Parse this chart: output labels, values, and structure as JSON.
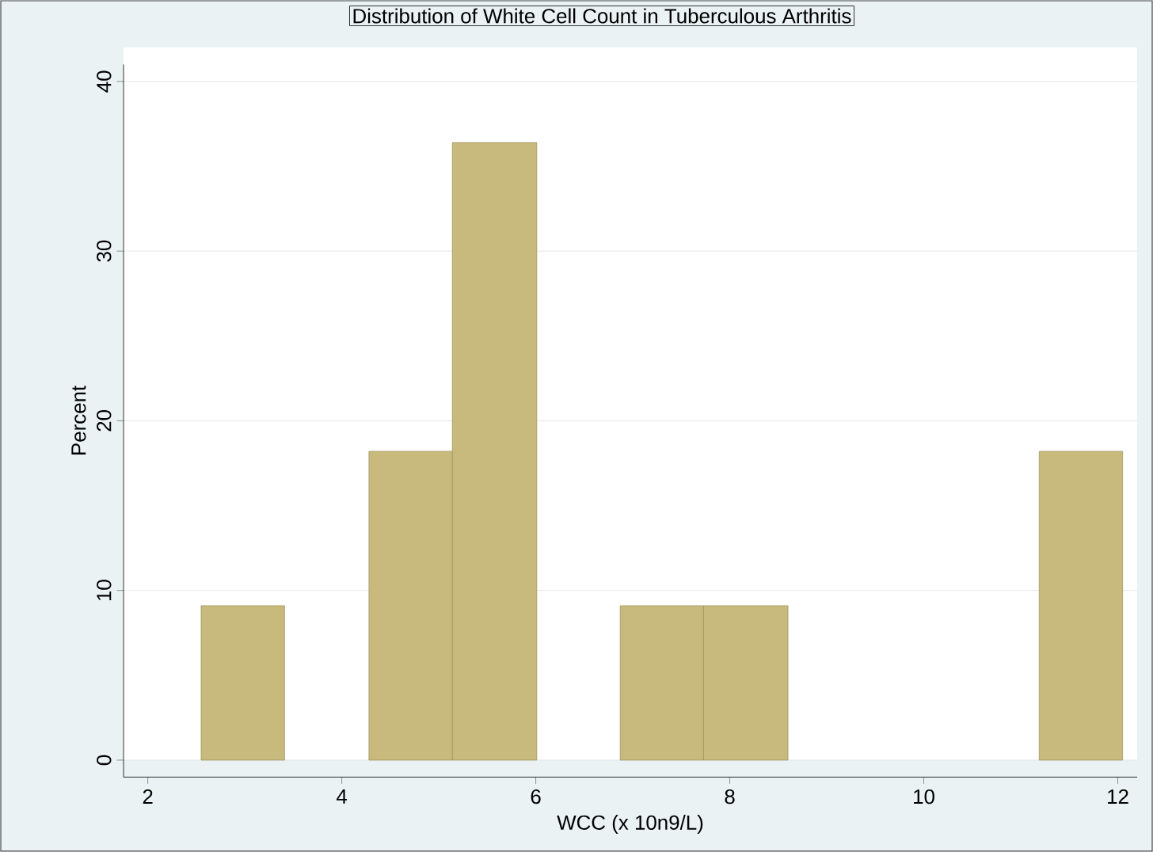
{
  "chart_data": {
    "type": "histogram",
    "title": "Distribution of White Cell Count in Tuberculous Arthritis",
    "xlabel": "WCC (x 10n9/L)",
    "ylabel": "Percent",
    "bins": [
      2.55,
      3.41,
      4.28,
      5.14,
      6.01,
      6.87,
      7.73,
      8.6,
      11.19,
      12.05
    ],
    "values": [
      9.1,
      0,
      18.2,
      36.4,
      0,
      9.1,
      9.1,
      0,
      18.2
    ],
    "color": "#c8ba7c",
    "xlim": [
      1.75,
      12.2
    ],
    "ylim": [
      -1,
      41
    ],
    "xticks": [
      2,
      4,
      6,
      8,
      10,
      12
    ],
    "yticks": [
      0,
      10,
      20,
      30,
      40
    ],
    "grid": "y"
  }
}
